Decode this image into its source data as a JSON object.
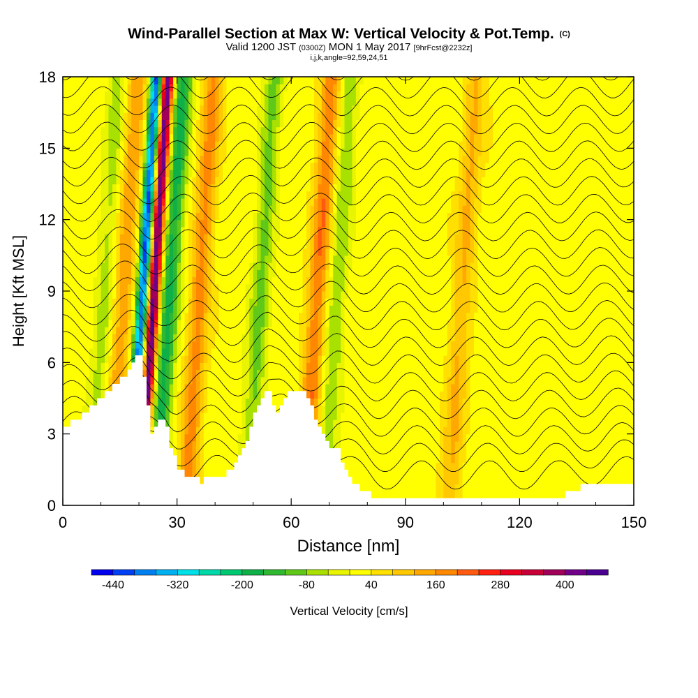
{
  "title": {
    "main": "Wind-Parallel Section at Max W: Vertical Velocity & Pot.Temp.",
    "copyright": "(C)",
    "valid_a": "Valid 1200 JST",
    "valid_utc": "(0300Z)",
    "valid_b": "MON 1 May 2017",
    "forecast": "[9hrFcst@2232z]",
    "indices": "i,j,k,angle=92,59,24,51"
  },
  "chart_data": {
    "type": "heatmap",
    "xlabel": "Distance [nm]",
    "ylabel": "Height [Kft MSL]",
    "xlim": [
      0,
      150
    ],
    "ylim": [
      0,
      18
    ],
    "x_ticks": [
      0,
      30,
      60,
      90,
      120,
      150
    ],
    "y_ticks": [
      0,
      3,
      6,
      9,
      12,
      15,
      18
    ],
    "colorbar": {
      "label": "Vertical Velocity [cm/s]",
      "min": -480,
      "max": 480,
      "step": 40,
      "tick_labels": [
        -440,
        -320,
        -200,
        -80,
        40,
        160,
        280,
        400
      ],
      "colors": [
        "#0000ee",
        "#0040f5",
        "#0080f0",
        "#00b0f0",
        "#00e0e8",
        "#00d8a8",
        "#00c870",
        "#10b048",
        "#30b830",
        "#60c818",
        "#a8e000",
        "#e8f400",
        "#ffff00",
        "#ffe000",
        "#ffc800",
        "#ffa800",
        "#ff8800",
        "#ff5a10",
        "#ff2010",
        "#e80020",
        "#c80038",
        "#a00058",
        "#700088",
        "#4a0090"
      ]
    },
    "updrafts_cm_s": [
      {
        "x": 16,
        "w": 130
      },
      {
        "x": 24,
        "w": 440
      },
      {
        "x": 36,
        "w": 150
      },
      {
        "x": 67,
        "w": 170
      },
      {
        "x": 105,
        "w": 100
      }
    ],
    "downdrafts_cm_s": [
      {
        "x": 21,
        "w": -440
      },
      {
        "x": 28,
        "w": -200
      },
      {
        "x": 11,
        "w": -80
      },
      {
        "x": 52,
        "w": -120
      },
      {
        "x": 72,
        "w": -100
      }
    ],
    "terrain_kft": [
      [
        0,
        3.3
      ],
      [
        4,
        3.6
      ],
      [
        6,
        3.9
      ],
      [
        8,
        4.2
      ],
      [
        10,
        4.5
      ],
      [
        12,
        4.8
      ],
      [
        14,
        5.1
      ],
      [
        16,
        5.4
      ],
      [
        18,
        6.1
      ],
      [
        20,
        6.2
      ],
      [
        21,
        5.4
      ],
      [
        22,
        4.2
      ],
      [
        23,
        3.0
      ],
      [
        25,
        3.6
      ],
      [
        27,
        3.3
      ],
      [
        28,
        2.4
      ],
      [
        30,
        1.5
      ],
      [
        32,
        1.3
      ],
      [
        36,
        1.0
      ],
      [
        42,
        1.3
      ],
      [
        44,
        1.5
      ],
      [
        46,
        2.1
      ],
      [
        48,
        2.8
      ],
      [
        50,
        3.8
      ],
      [
        52,
        4.5
      ],
      [
        54,
        4.8
      ],
      [
        55,
        4.2
      ],
      [
        56,
        3.9
      ],
      [
        58,
        4.5
      ],
      [
        60,
        4.8
      ],
      [
        62,
        4.8
      ],
      [
        64,
        4.5
      ],
      [
        66,
        3.6
      ],
      [
        68,
        3.0
      ],
      [
        70,
        2.5
      ],
      [
        72,
        2.3
      ],
      [
        74,
        1.5
      ],
      [
        76,
        1.0
      ],
      [
        78,
        0.7
      ],
      [
        80,
        0.5
      ],
      [
        82,
        0.3
      ],
      [
        130,
        0.3
      ],
      [
        138,
        1.0
      ],
      [
        150,
        1.0
      ]
    ],
    "theta_contour_count": 24
  }
}
